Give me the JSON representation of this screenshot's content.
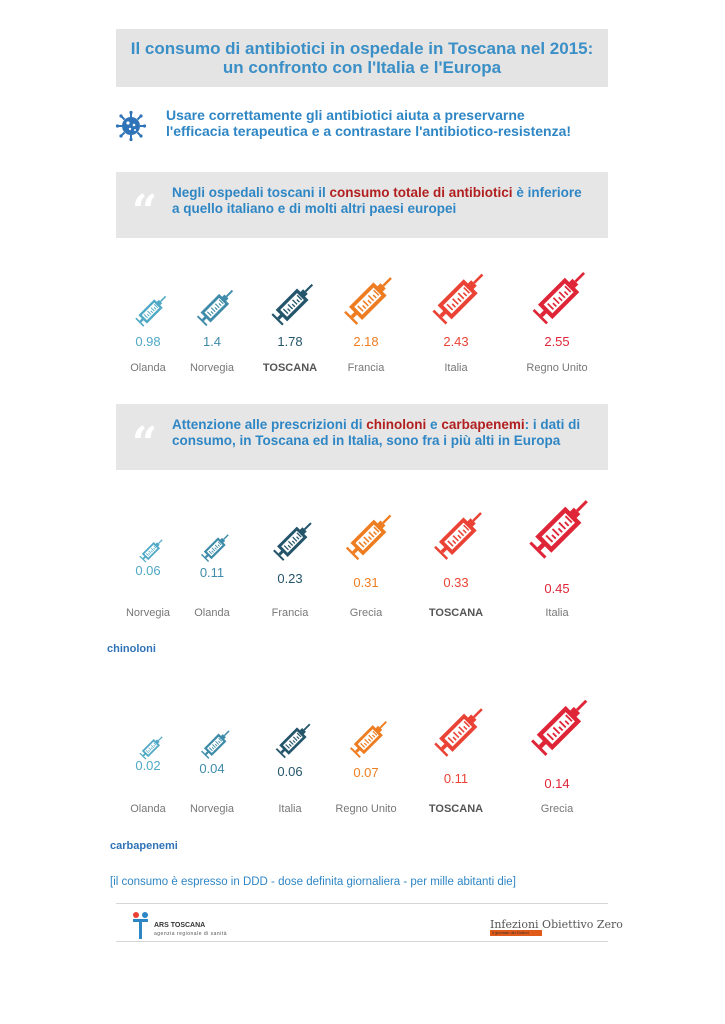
{
  "title": {
    "line1": "Il consumo di antibiotici in ospedale in Toscana nel 2015:",
    "line2": "un confronto con l'Italia e l'Europa"
  },
  "intro": {
    "line1": "Usare correttamente gli antibiotici aiuta a preservarne",
    "line2": "l'efficacia terapeutica e a contrastare l'antibiotico-resistenza!",
    "icon": "virus-icon"
  },
  "quote1": {
    "mark": "“",
    "before": "Negli ospedali toscani il ",
    "highlight": "consumo totale di antibiotici",
    "after": " è inferiore a quello italiano e di molti altri paesi europei"
  },
  "quote2": {
    "mark": "“",
    "before": "Attenzione alle prescrizioni di ",
    "highlight1": "chinoloni",
    "mid": " e ",
    "highlight2": "carbapenemi",
    "after": ": i dati di consumo, in Toscana ed in Italia, sono fra i più alti in Europa"
  },
  "colors": [
    "#4fa9c6",
    "#3e8ca9",
    "#24556b",
    "#ee7d22",
    "#ea4335",
    "#df2638"
  ],
  "groups": [
    {
      "key": "totale",
      "label": "",
      "items": [
        {
          "name": "Olanda",
          "value": "0.98",
          "level": 0.98
        },
        {
          "name": "Norvegia",
          "value": "1.4",
          "level": 1.4
        },
        {
          "name": "TOSCANA",
          "value": "1.78",
          "level": 1.78
        },
        {
          "name": "Francia",
          "value": "2.18",
          "level": 2.18
        },
        {
          "name": "Italia",
          "value": "2.43",
          "level": 2.43
        },
        {
          "name": "Regno Unito",
          "value": "2.55",
          "level": 2.55
        }
      ]
    },
    {
      "key": "chinoloni",
      "label": "chinoloni",
      "items": [
        {
          "name": "Norvegia",
          "value": "0.06",
          "level": 0.06
        },
        {
          "name": "Olanda",
          "value": "0.11",
          "level": 0.11
        },
        {
          "name": "Francia",
          "value": "0.23",
          "level": 0.23
        },
        {
          "name": "Grecia",
          "value": "0.31",
          "level": 0.31
        },
        {
          "name": "TOSCANA",
          "value": "0.33",
          "level": 0.33
        },
        {
          "name": "Italia",
          "value": "0.45",
          "level": 0.45
        }
      ]
    },
    {
      "key": "carbapenemi",
      "label": "carbapenemi",
      "items": [
        {
          "name": "Olanda",
          "value": "0.02",
          "level": 0.02
        },
        {
          "name": "Norvegia",
          "value": "0.04",
          "level": 0.04
        },
        {
          "name": "Italia",
          "value": "0.06",
          "level": 0.06
        },
        {
          "name": "Regno Unito",
          "value": "0.07",
          "level": 0.07
        },
        {
          "name": "TOSCANA",
          "value": "0.11",
          "level": 0.11
        },
        {
          "name": "Grecia",
          "value": "0.14",
          "level": 0.14
        }
      ]
    }
  ],
  "note": "[il consumo è espresso in DDD - dose definita giornaliera - per mille abitanti die]",
  "footer": {
    "ars_name": "ARS TOSCANA",
    "ars_sub": "agenzia regionale di sanità",
    "io_title": "Infezioni Obiettivo Zero",
    "io_sub": "Il giornale dei Dottori"
  }
}
